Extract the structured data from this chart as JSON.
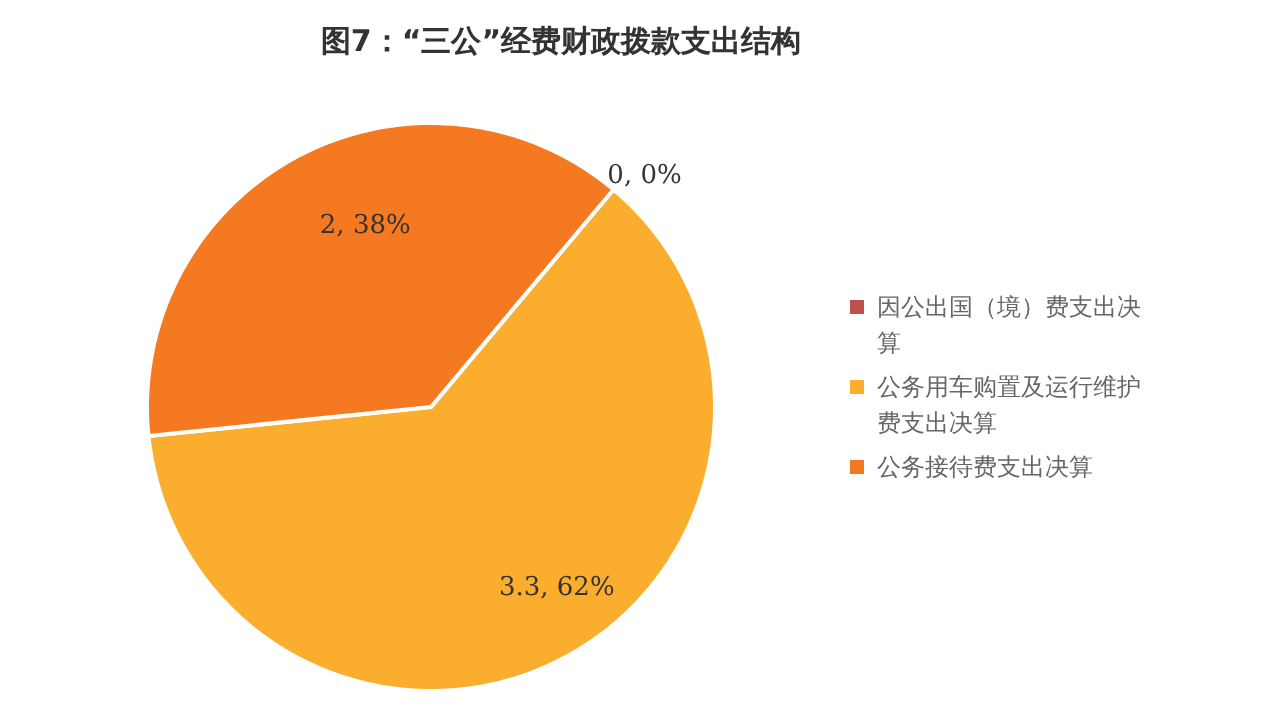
{
  "chart_data": {
    "type": "pie",
    "title": "图7：“三公”经费财政拨款支出结构",
    "categories": [
      "因公出国（境）费支出决算",
      "公务用车购置及运行维护费支出决算",
      "公务接待费支出决算"
    ],
    "values": [
      0,
      3.3,
      2
    ],
    "colors": [
      "#c0504d",
      "#fbae2e",
      "#f47920"
    ],
    "value_labels": [
      "0, 0%",
      "3.3, 62%",
      "2, 38%"
    ],
    "legend": "right"
  }
}
